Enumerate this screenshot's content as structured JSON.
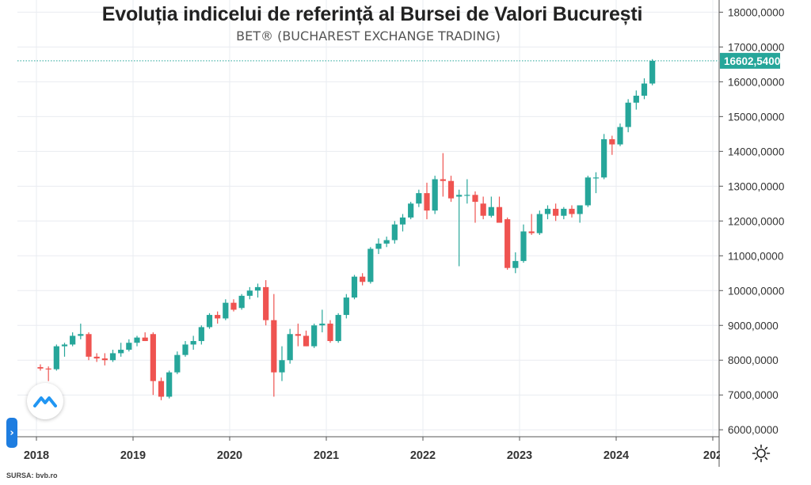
{
  "chart_data": {
    "type": "candlestick",
    "title": "Evoluția indicelui de referință al Bursei de Valori București",
    "subtitle": "BET® (BUCHAREST EXCHANGE TRADING)",
    "x_ticks": [
      "2018",
      "2019",
      "2020",
      "2021",
      "2022",
      "2023",
      "2024",
      "202"
    ],
    "y_ticks": [
      "6000,0000",
      "7000,0000",
      "8000,0000",
      "9000,0000",
      "10000,0000",
      "11000,0000",
      "12000,0000",
      "13000,0000",
      "14000,0000",
      "15000,0000",
      "16000,0000",
      "17000,0000",
      "18000,0000"
    ],
    "ylim": [
      5800,
      18350
    ],
    "last_price_label": "16602,5400",
    "last_price": 16602.54,
    "grid": true,
    "colors": {
      "up": "#26a69a",
      "down": "#ef5350",
      "grid": "#e9ecf1",
      "axis": "#555555",
      "price_line": "#26a69a"
    },
    "candles": [
      {
        "d": "2018-01",
        "o": 7800,
        "h": 7880,
        "l": 7700,
        "c": 7760
      },
      {
        "d": "2018-02",
        "o": 7760,
        "h": 7820,
        "l": 7400,
        "c": 7740
      },
      {
        "d": "2018-03",
        "o": 7740,
        "h": 8450,
        "l": 7700,
        "c": 8400
      },
      {
        "d": "2018-04",
        "o": 8400,
        "h": 8500,
        "l": 8100,
        "c": 8450
      },
      {
        "d": "2018-05",
        "o": 8450,
        "h": 8800,
        "l": 8400,
        "c": 8700
      },
      {
        "d": "2018-06",
        "o": 8700,
        "h": 9050,
        "l": 8600,
        "c": 8750
      },
      {
        "d": "2018-07",
        "o": 8750,
        "h": 8800,
        "l": 8000,
        "c": 8100
      },
      {
        "d": "2018-08",
        "o": 8100,
        "h": 8200,
        "l": 7950,
        "c": 8050
      },
      {
        "d": "2018-09",
        "o": 8050,
        "h": 8200,
        "l": 7850,
        "c": 8000
      },
      {
        "d": "2018-10",
        "o": 8000,
        "h": 8300,
        "l": 7950,
        "c": 8200
      },
      {
        "d": "2018-11",
        "o": 8200,
        "h": 8500,
        "l": 8100,
        "c": 8300
      },
      {
        "d": "2018-12",
        "o": 8300,
        "h": 8600,
        "l": 8250,
        "c": 8500
      },
      {
        "d": "2019-01",
        "o": 8500,
        "h": 8700,
        "l": 8400,
        "c": 8650
      },
      {
        "d": "2019-02",
        "o": 8650,
        "h": 8800,
        "l": 8550,
        "c": 8550
      },
      {
        "d": "2019-03",
        "o": 8750,
        "h": 8800,
        "l": 7000,
        "c": 7400
      },
      {
        "d": "2019-04",
        "o": 7400,
        "h": 7500,
        "l": 6850,
        "c": 6950
      },
      {
        "d": "2019-05",
        "o": 6950,
        "h": 7700,
        "l": 6900,
        "c": 7650
      },
      {
        "d": "2019-06",
        "o": 7650,
        "h": 8250,
        "l": 7600,
        "c": 8150
      },
      {
        "d": "2019-07",
        "o": 8150,
        "h": 8550,
        "l": 8100,
        "c": 8450
      },
      {
        "d": "2019-08",
        "o": 8450,
        "h": 8700,
        "l": 8300,
        "c": 8550
      },
      {
        "d": "2019-09",
        "o": 8550,
        "h": 9000,
        "l": 8450,
        "c": 8950
      },
      {
        "d": "2019-10",
        "o": 8950,
        "h": 9350,
        "l": 8900,
        "c": 9300
      },
      {
        "d": "2019-11",
        "o": 9300,
        "h": 9400,
        "l": 9050,
        "c": 9200
      },
      {
        "d": "2019-12",
        "o": 9200,
        "h": 9750,
        "l": 9150,
        "c": 9650
      },
      {
        "d": "2020-01",
        "o": 9650,
        "h": 9750,
        "l": 9400,
        "c": 9450
      },
      {
        "d": "2020-02",
        "o": 9500,
        "h": 9900,
        "l": 9450,
        "c": 9850
      },
      {
        "d": "2020-03",
        "o": 9850,
        "h": 10100,
        "l": 9750,
        "c": 10000
      },
      {
        "d": "2020-04",
        "o": 10000,
        "h": 10200,
        "l": 9800,
        "c": 10100
      },
      {
        "d": "2020-05",
        "o": 10100,
        "h": 10300,
        "l": 9000,
        "c": 9150
      },
      {
        "d": "2020-06",
        "o": 9150,
        "h": 9900,
        "l": 6950,
        "c": 7650
      },
      {
        "d": "2020-07",
        "o": 7650,
        "h": 8400,
        "l": 7400,
        "c": 8000
      },
      {
        "d": "2020-08",
        "o": 8000,
        "h": 8900,
        "l": 7900,
        "c": 8750
      },
      {
        "d": "2020-09",
        "o": 8750,
        "h": 9050,
        "l": 8400,
        "c": 8700
      },
      {
        "d": "2020-10",
        "o": 8700,
        "h": 8850,
        "l": 8400,
        "c": 8400
      },
      {
        "d": "2020-11",
        "o": 8400,
        "h": 9050,
        "l": 8350,
        "c": 9000
      },
      {
        "d": "2020-12",
        "o": 9000,
        "h": 9450,
        "l": 8800,
        "c": 9050
      },
      {
        "d": "2021-01",
        "o": 9050,
        "h": 9150,
        "l": 8500,
        "c": 8550
      },
      {
        "d": "2021-02",
        "o": 8550,
        "h": 9350,
        "l": 8500,
        "c": 9300
      },
      {
        "d": "2021-03",
        "o": 9300,
        "h": 9900,
        "l": 9200,
        "c": 9800
      },
      {
        "d": "2021-04",
        "o": 9800,
        "h": 10450,
        "l": 9750,
        "c": 10400
      },
      {
        "d": "2021-05",
        "o": 10400,
        "h": 10500,
        "l": 10150,
        "c": 10250
      },
      {
        "d": "2021-06",
        "o": 10250,
        "h": 11250,
        "l": 10200,
        "c": 11200
      },
      {
        "d": "2021-07",
        "o": 11200,
        "h": 11500,
        "l": 11050,
        "c": 11350
      },
      {
        "d": "2021-08",
        "o": 11350,
        "h": 11550,
        "l": 11250,
        "c": 11450
      },
      {
        "d": "2021-09",
        "o": 11450,
        "h": 12000,
        "l": 11350,
        "c": 11900
      },
      {
        "d": "2021-10",
        "o": 11900,
        "h": 12200,
        "l": 11700,
        "c": 12100
      },
      {
        "d": "2021-11",
        "o": 12100,
        "h": 12550,
        "l": 12050,
        "c": 12500
      },
      {
        "d": "2021-12",
        "o": 12500,
        "h": 12900,
        "l": 12400,
        "c": 12800
      },
      {
        "d": "2022-01",
        "o": 12800,
        "h": 13100,
        "l": 12050,
        "c": 12300
      },
      {
        "d": "2022-02",
        "o": 12300,
        "h": 13300,
        "l": 12200,
        "c": 13200
      },
      {
        "d": "2022-03",
        "o": 13200,
        "h": 13950,
        "l": 12700,
        "c": 13150
      },
      {
        "d": "2022-04",
        "o": 13150,
        "h": 13300,
        "l": 12550,
        "c": 12650
      },
      {
        "d": "2022-05",
        "o": 12700,
        "h": 12900,
        "l": 10700,
        "c": 12750
      },
      {
        "d": "2022-06",
        "o": 12750,
        "h": 13200,
        "l": 12500,
        "c": 12750
      },
      {
        "d": "2022-07",
        "o": 12750,
        "h": 12850,
        "l": 11950,
        "c": 12550
      },
      {
        "d": "2022-08",
        "o": 12500,
        "h": 12700,
        "l": 12050,
        "c": 12150
      },
      {
        "d": "2022-09",
        "o": 12150,
        "h": 12700,
        "l": 12100,
        "c": 12400
      },
      {
        "d": "2022-10",
        "o": 12400,
        "h": 12700,
        "l": 11950,
        "c": 11950
      },
      {
        "d": "2022-11",
        "o": 12050,
        "h": 12100,
        "l": 10600,
        "c": 10650
      },
      {
        "d": "2022-12",
        "o": 10650,
        "h": 11100,
        "l": 10500,
        "c": 10850
      },
      {
        "d": "2023-01",
        "o": 10850,
        "h": 11900,
        "l": 10800,
        "c": 11700
      },
      {
        "d": "2023-02",
        "o": 11700,
        "h": 12200,
        "l": 11600,
        "c": 11650
      },
      {
        "d": "2023-03",
        "o": 11650,
        "h": 12300,
        "l": 11600,
        "c": 12200
      },
      {
        "d": "2023-04",
        "o": 12200,
        "h": 12450,
        "l": 12050,
        "c": 12350
      },
      {
        "d": "2023-05",
        "o": 12350,
        "h": 12500,
        "l": 12000,
        "c": 12150
      },
      {
        "d": "2023-06",
        "o": 12150,
        "h": 12400,
        "l": 12050,
        "c": 12350
      },
      {
        "d": "2023-07",
        "o": 12350,
        "h": 12450,
        "l": 12100,
        "c": 12200
      },
      {
        "d": "2023-08",
        "o": 12200,
        "h": 12450,
        "l": 11950,
        "c": 12450
      },
      {
        "d": "2023-09",
        "o": 12450,
        "h": 13300,
        "l": 12400,
        "c": 13250
      },
      {
        "d": "2023-10",
        "o": 13250,
        "h": 13400,
        "l": 12800,
        "c": 13250
      },
      {
        "d": "2023-11",
        "o": 13250,
        "h": 14500,
        "l": 13200,
        "c": 14350
      },
      {
        "d": "2023-12",
        "o": 14350,
        "h": 14450,
        "l": 13900,
        "c": 14200
      },
      {
        "d": "2024-01",
        "o": 14200,
        "h": 14800,
        "l": 14150,
        "c": 14700
      },
      {
        "d": "2024-02",
        "o": 14700,
        "h": 15500,
        "l": 14550,
        "c": 15400
      },
      {
        "d": "2024-03",
        "o": 15400,
        "h": 15750,
        "l": 15200,
        "c": 15600
      },
      {
        "d": "2024-04",
        "o": 15600,
        "h": 16100,
        "l": 15500,
        "c": 15950
      },
      {
        "d": "2024-05",
        "o": 15950,
        "h": 16650,
        "l": 15900,
        "c": 16602.54
      }
    ]
  },
  "footer": {
    "source": "SURSA: bvb.ro"
  },
  "icons": {
    "logo": "tradingview-wave-icon",
    "expand": "chevron-right-icon",
    "settings": "sun-settings-icon"
  }
}
